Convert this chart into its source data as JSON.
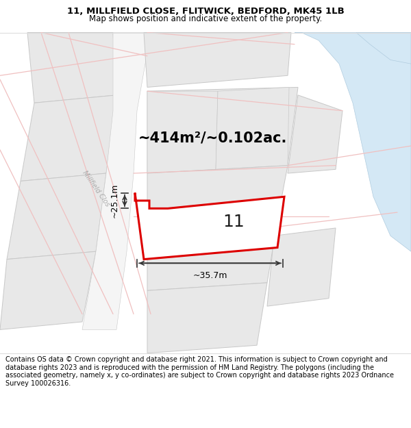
{
  "title_line1": "11, MILLFIELD CLOSE, FLITWICK, BEDFORD, MK45 1LB",
  "title_line2": "Map shows position and indicative extent of the property.",
  "area_text": "~414m²/~0.102ac.",
  "number_label": "11",
  "dim_width": "~35.7m",
  "dim_height": "~25.1m",
  "street_label": "Millfield Clos",
  "footer_text": "Contains OS data © Crown copyright and database right 2021. This information is subject to Crown copyright and database rights 2023 and is reproduced with the permission of HM Land Registry. The polygons (including the associated geometry, namely x, y co-ordinates) are subject to Crown copyright and database rights 2023 Ordnance Survey 100026316.",
  "map_bg": "#ffffff",
  "parcel_fill": "#e8e8e8",
  "parcel_edge": "#c8c8c8",
  "highlight_fill": "#ffffff",
  "highlight_stroke": "#dd0000",
  "road_pink": "#f0c0c0",
  "road_blue_fill": "#d4e8f5",
  "road_blue_edge": "#b0ccdf",
  "white_road": "#ffffff",
  "title_bg": "#ffffff",
  "footer_bg": "#ffffff"
}
